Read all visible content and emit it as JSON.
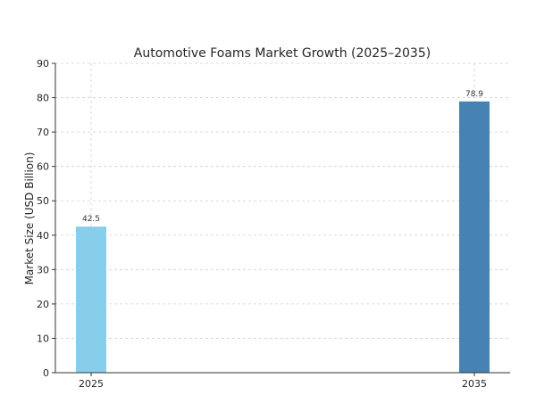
{
  "chart_data": {
    "type": "bar",
    "title": "Automotive Foams Market Growth (2025–2035)",
    "xlabel": "",
    "ylabel": "Market Size (USD Billion)",
    "categories": [
      "2025",
      "2035"
    ],
    "values": [
      42.5,
      78.9
    ],
    "data_labels": [
      "42.5",
      "78.9"
    ],
    "colors": [
      "#87ceeb",
      "#4682b4"
    ],
    "ylim": [
      0,
      90
    ],
    "yticks": [
      0,
      10,
      20,
      30,
      40,
      50,
      60,
      70,
      80,
      90
    ],
    "grid": true
  }
}
